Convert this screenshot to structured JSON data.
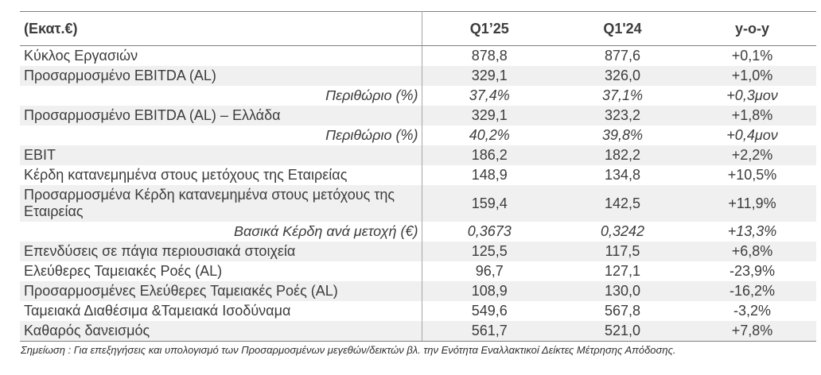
{
  "table": {
    "unit_header": "(Εκατ.€)",
    "columns": [
      "Q1’25",
      "Q1'24",
      "y-o-y"
    ],
    "rows": [
      {
        "label": "Κύκλος Εργασιών",
        "q1_25": "878,8",
        "q1_24": "877,6",
        "yoy": "+0,1%",
        "style": "normal",
        "shaded": false
      },
      {
        "label": "Προσαρμοσμένο EBITDA (AL)",
        "q1_25": "329,1",
        "q1_24": "326,0",
        "yoy": "+1,0%",
        "style": "normal",
        "shaded": true
      },
      {
        "label": "Περιθώριο (%)",
        "q1_25": "37,4%",
        "q1_24": "37,1%",
        "yoy": "+0,3μον",
        "style": "italic",
        "shaded": false
      },
      {
        "label": "Προσαρμοσμένο EBITDA (AL) – Ελλάδα",
        "q1_25": "329,1",
        "q1_24": "323,2",
        "yoy": "+1,8%",
        "style": "normal",
        "shaded": true
      },
      {
        "label": "Περιθώριο (%)",
        "q1_25": "40,2%",
        "q1_24": "39,8%",
        "yoy": "+0,4μον",
        "style": "italic",
        "shaded": false
      },
      {
        "label": "EBIT",
        "q1_25": "186,2",
        "q1_24": "182,2",
        "yoy": "+2,2%",
        "style": "normal",
        "shaded": true
      },
      {
        "label": "Κέρδη κατανεμημένα στους μετόχους της Εταιρείας",
        "q1_25": "148,9",
        "q1_24": "134,8",
        "yoy": "+10,5%",
        "style": "normal",
        "shaded": false
      },
      {
        "label": "Προσαρμοσμένα Κέρδη κατανεμημένα στους μετόχους της Εταιρείας",
        "q1_25": "159,4",
        "q1_24": "142,5",
        "yoy": "+11,9%",
        "style": "normal",
        "shaded": true
      },
      {
        "label": "Βασικά Κέρδη ανά μετοχή (€)",
        "q1_25": "0,3673",
        "q1_24": "0,3242",
        "yoy": "+13,3%",
        "style": "italic",
        "shaded": false
      },
      {
        "label": "Επενδύσεις σε πάγια περιουσιακά στοιχεία",
        "q1_25": "125,5",
        "q1_24": "117,5",
        "yoy": "+6,8%",
        "style": "normal",
        "shaded": true
      },
      {
        "label": "Ελεύθερες Ταμειακές Ροές (AL)",
        "q1_25": "96,7",
        "q1_24": "127,1",
        "yoy": "-23,9%",
        "style": "normal",
        "shaded": false
      },
      {
        "label": "Προσαρμοσμένες Ελεύθερες Ταμειακές Ροές (AL)",
        "q1_25": "108,9",
        "q1_24": "130,0",
        "yoy": "-16,2%",
        "style": "normal",
        "shaded": true
      },
      {
        "label": "Ταμειακά Διαθέσιμα &Ταμειακά Ισοδύναμα",
        "q1_25": "549,6",
        "q1_24": "567,8",
        "yoy": "-3,2%",
        "style": "normal",
        "shaded": false
      },
      {
        "label": "Καθαρός δανεισμός",
        "q1_25": "561,7",
        "q1_24": "521,0",
        "yoy": "+7,8%",
        "style": "normal",
        "shaded": true
      }
    ]
  },
  "footnote": "Σημείωση : Για επεξηγήσεις και υπολογισμό των Προσαρμοσμένων μεγεθών/δεικτών βλ. την Ενότητα Εναλλακτικοί Δείκτες Μέτρησης Απόδοσης.",
  "colors": {
    "row_shading": "#f0f0f0",
    "grid_line": "#7f7f7f",
    "column_divider": "#a6a6a6",
    "text": "#3c3c3c"
  }
}
